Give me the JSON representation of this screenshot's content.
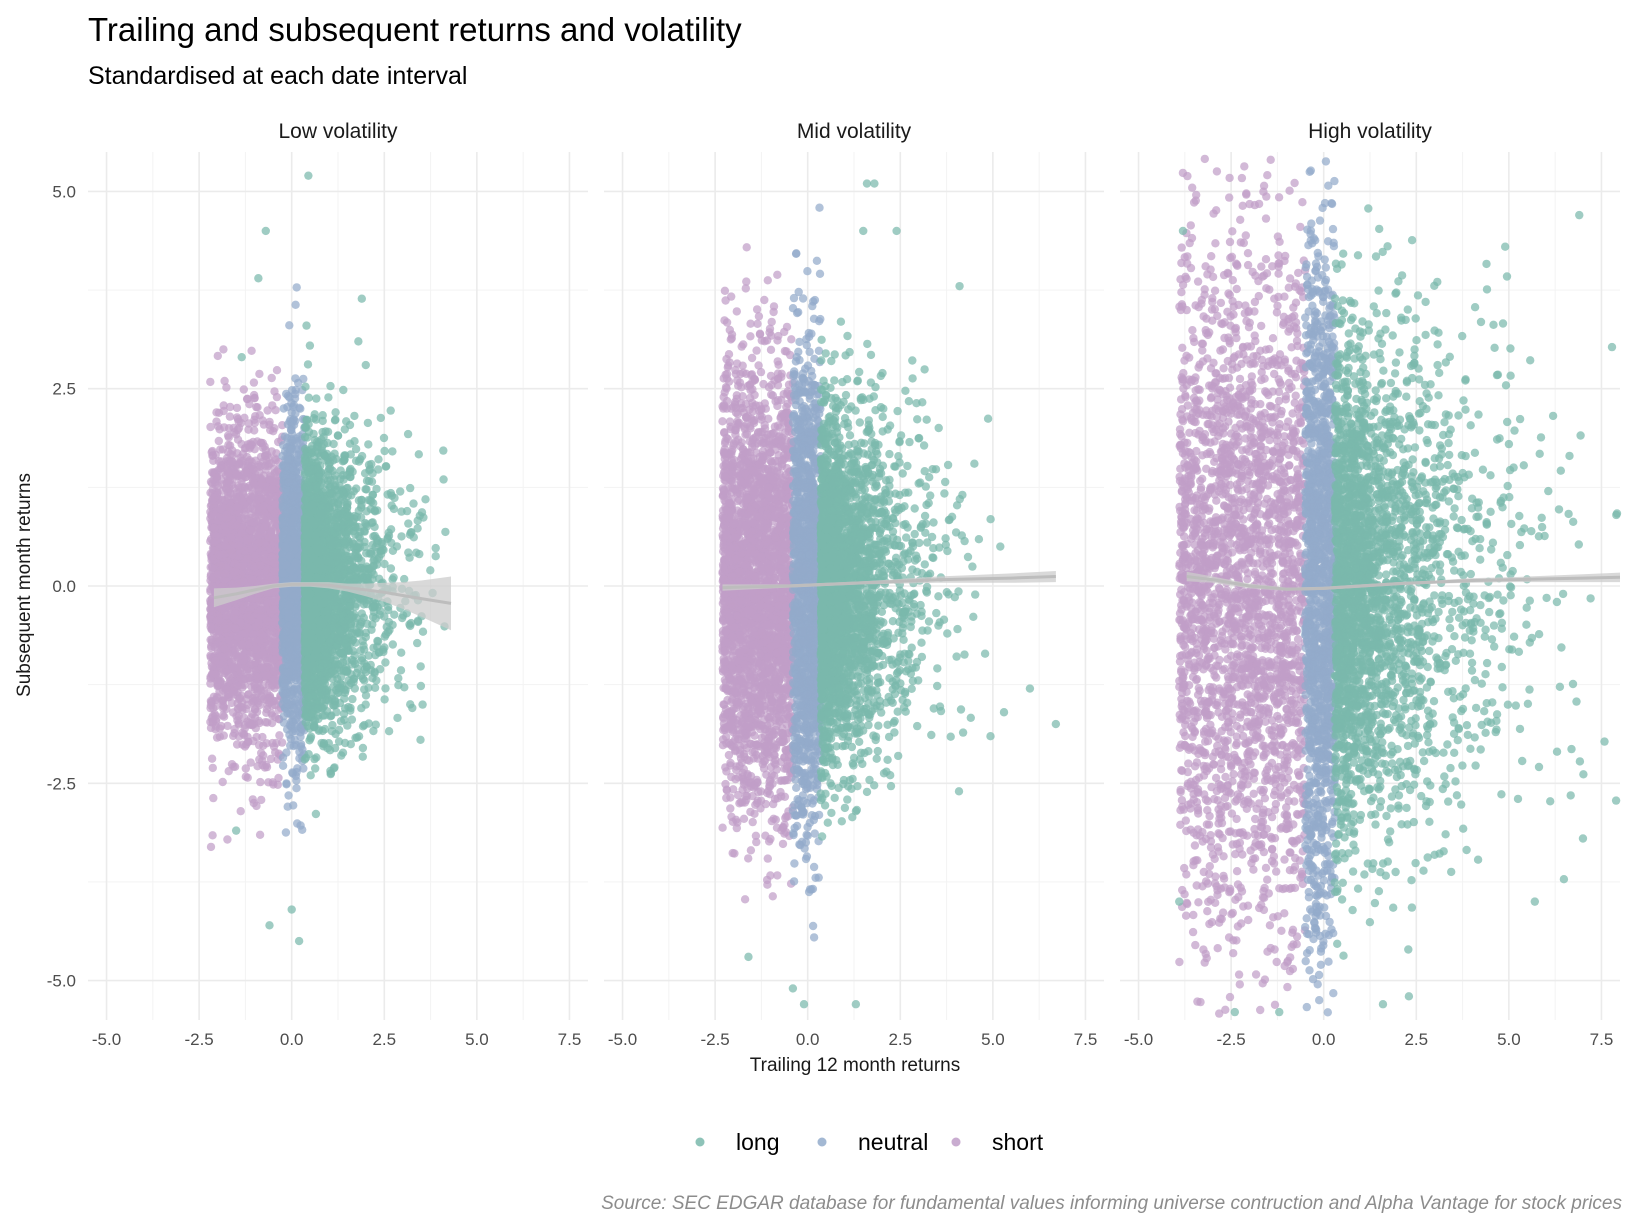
{
  "chart_data": {
    "type": "scatter",
    "title": "Trailing and subsequent returns and volatility",
    "subtitle": "Standardised at each date interval",
    "xlabel": "Trailing 12 month returns",
    "ylabel": "Subsequent month returns",
    "caption": "Source: SEC EDGAR database for fundamental values informing universe contruction and Alpha Vantage for stock prices",
    "xlim": [
      -5.5,
      8.0
    ],
    "ylim": [
      -5.5,
      5.5
    ],
    "x_ticks": [
      -5.0,
      -2.5,
      0.0,
      2.5,
      5.0,
      7.5
    ],
    "x_tick_labels": [
      "-5.0",
      "-2.5",
      "0.0",
      "2.5",
      "5.0",
      "7.5"
    ],
    "y_ticks": [
      -5.0,
      -2.5,
      0.0,
      2.5,
      5.0
    ],
    "y_tick_labels": [
      "-5.0",
      "-2.5",
      "0.0",
      "2.5",
      "5.0"
    ],
    "grid": true,
    "legend_position": "bottom",
    "legend": [
      {
        "name": "long",
        "color": "#7ab8ac"
      },
      {
        "name": "neutral",
        "color": "#93abcb"
      },
      {
        "name": "short",
        "color": "#c09ec8"
      }
    ],
    "smooth_color": "#bdbdbd",
    "band_color": "#cccccc",
    "panels": [
      {
        "title": "Low volatility",
        "groups": {
          "short": {
            "x_range": [
              -2.2,
              -0.25
            ],
            "y_sd": 0.95
          },
          "neutral": {
            "x_range": [
              -0.25,
              0.35
            ],
            "y_sd": 1.0
          },
          "long": {
            "x_range": [
              0.35,
              4.2
            ],
            "y_sd": 0.85
          }
        },
        "smooth": {
          "x": [
            -2.1,
            -1.5,
            -1.0,
            -0.5,
            0.0,
            0.5,
            1.0,
            1.5,
            2.0,
            2.5,
            3.0,
            3.5,
            4.3
          ],
          "y": [
            -0.15,
            -0.1,
            -0.05,
            0.0,
            0.02,
            0.02,
            0.01,
            -0.02,
            -0.05,
            -0.08,
            -0.12,
            -0.16,
            -0.22
          ],
          "se": [
            0.12,
            0.08,
            0.05,
            0.03,
            0.03,
            0.03,
            0.04,
            0.05,
            0.08,
            0.12,
            0.17,
            0.23,
            0.34
          ]
        },
        "outliers": [
          [
            0.45,
            5.2
          ],
          [
            -1.35,
            2.9
          ],
          [
            -0.7,
            4.5
          ],
          [
            -0.9,
            3.9
          ],
          [
            0.4,
            3.3
          ],
          [
            -0.6,
            -4.3
          ],
          [
            0.2,
            -4.5
          ],
          [
            0.0,
            -4.1
          ],
          [
            4.1,
            1.35
          ],
          [
            3.2,
            -1.5
          ],
          [
            2.0,
            2.8
          ],
          [
            1.8,
            3.1
          ],
          [
            -1.5,
            -3.1
          ]
        ]
      },
      {
        "title": "Mid volatility",
        "groups": {
          "short": {
            "x_range": [
              -2.3,
              -0.4
            ],
            "y_sd": 1.35
          },
          "neutral": {
            "x_range": [
              -0.4,
              0.35
            ],
            "y_sd": 1.45
          },
          "long": {
            "x_range": [
              0.35,
              5.0
            ],
            "y_sd": 1.05
          }
        },
        "smooth": {
          "x": [
            -2.3,
            -1.5,
            -0.5,
            0.5,
            1.5,
            2.5,
            3.5,
            4.5,
            5.5,
            6.7
          ],
          "y": [
            -0.02,
            -0.01,
            0.0,
            0.02,
            0.04,
            0.06,
            0.08,
            0.09,
            0.1,
            0.12
          ],
          "se": [
            0.04,
            0.03,
            0.02,
            0.02,
            0.02,
            0.03,
            0.04,
            0.05,
            0.06,
            0.07
          ]
        },
        "outliers": [
          [
            1.6,
            5.1
          ],
          [
            1.8,
            5.1
          ],
          [
            4.1,
            3.8
          ],
          [
            6.7,
            -1.75
          ],
          [
            5.2,
            0.5
          ],
          [
            6.0,
            -1.3
          ],
          [
            -0.4,
            -5.1
          ],
          [
            -0.1,
            -5.3
          ],
          [
            1.3,
            -5.3
          ],
          [
            4.5,
            1.55
          ],
          [
            2.4,
            4.5
          ],
          [
            -1.6,
            -4.7
          ],
          [
            1.5,
            4.5
          ],
          [
            5.3,
            -1.6
          ]
        ]
      },
      {
        "title": "High volatility",
        "groups": {
          "short": {
            "x_range": [
              -3.9,
              -0.5
            ],
            "y_sd": 2.1
          },
          "neutral": {
            "x_range": [
              -0.5,
              0.3
            ],
            "y_sd": 2.2
          },
          "long": {
            "x_range": [
              0.3,
              8.0
            ],
            "y_sd": 1.5
          }
        },
        "smooth": {
          "x": [
            -3.7,
            -3.0,
            -2.0,
            -1.0,
            0.0,
            1.0,
            2.0,
            3.0,
            4.0,
            5.0,
            6.0,
            7.0,
            8.0
          ],
          "y": [
            0.12,
            0.08,
            0.0,
            -0.04,
            -0.03,
            0.0,
            0.03,
            0.05,
            0.07,
            0.08,
            0.09,
            0.1,
            0.11
          ],
          "se": [
            0.06,
            0.04,
            0.03,
            0.02,
            0.02,
            0.02,
            0.02,
            0.02,
            0.03,
            0.03,
            0.04,
            0.05,
            0.06
          ]
        },
        "outliers": [
          [
            6.9,
            4.7
          ],
          [
            4.9,
            4.3
          ],
          [
            7.0,
            -3.2
          ],
          [
            6.3,
            -2.1
          ],
          [
            -3.8,
            4.5
          ],
          [
            5.7,
            -4.0
          ],
          [
            7.9,
            0.9
          ],
          [
            -3.9,
            -4.0
          ],
          [
            1.6,
            -5.3
          ],
          [
            2.3,
            -5.2
          ],
          [
            -2.4,
            -5.4
          ],
          [
            -1.2,
            -5.4
          ]
        ]
      }
    ]
  }
}
